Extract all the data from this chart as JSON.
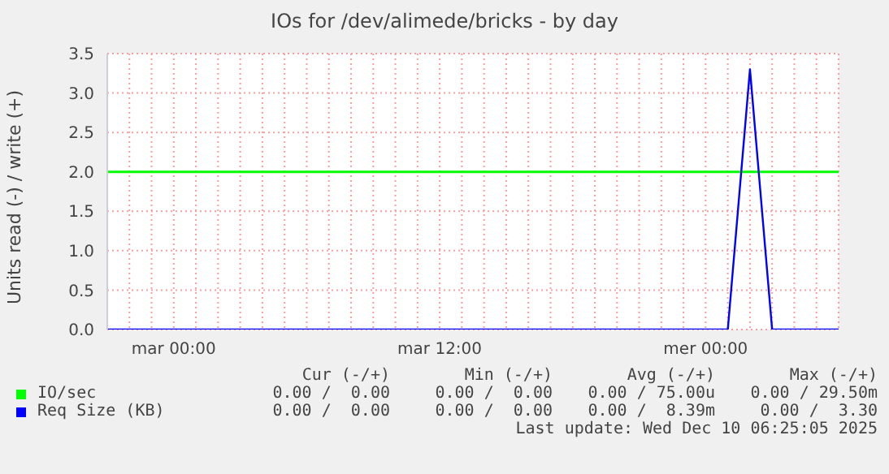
{
  "chart_data": {
    "type": "line",
    "title": "IOs for /dev/alimede/bricks - by day",
    "ylabel": "Units read (-) / write (+)",
    "categories": [
      null,
      null,
      null,
      "mar 00:00",
      null,
      null,
      null,
      null,
      null,
      null,
      null,
      null,
      null,
      null,
      null,
      "mar 12:00",
      null,
      null,
      null,
      null,
      null,
      null,
      null,
      null,
      null,
      null,
      null,
      "mer 00:00",
      null,
      null,
      null,
      null,
      null,
      null
    ],
    "ylim": [
      0,
      3.5
    ],
    "yticks": [
      {
        "value": 0,
        "label": "0.0"
      },
      {
        "value": 0.5,
        "label": "0.5"
      },
      {
        "value": 1,
        "label": "1.0"
      },
      {
        "value": 1.5,
        "label": "1.5"
      },
      {
        "value": 2,
        "label": "2.0"
      },
      {
        "value": 2.5,
        "label": "2.5"
      },
      {
        "value": 3,
        "label": "3.0"
      },
      {
        "value": 3.5,
        "label": "3.5"
      }
    ],
    "grid": true,
    "legend": "bottom",
    "marker": "none",
    "series": [
      {
        "name": "IO/sec",
        "color": "#00ff00",
        "values": [
          null,
          null,
          null,
          null,
          null,
          null,
          null,
          null,
          null,
          null,
          null,
          null,
          null,
          null,
          null,
          null,
          null,
          null,
          null,
          null,
          null,
          null,
          null,
          null,
          null,
          null,
          null,
          null,
          null,
          null,
          null,
          null,
          null,
          null
        ]
      },
      {
        "name": "Req Size (KB)",
        "color": "#0000ff",
        "values": [
          0,
          0,
          0,
          0,
          0,
          0,
          0,
          0,
          0,
          0,
          0,
          0,
          0,
          0,
          0,
          0,
          0,
          0,
          0,
          0,
          0,
          0,
          0,
          0,
          0,
          0,
          0,
          0,
          0,
          3.3,
          0,
          0,
          0,
          0
        ]
      }
    ],
    "ref_lines": [
      {
        "axis": "y",
        "value": 2,
        "color": "#00ff00"
      }
    ],
    "annotations": [
      "Cur (-/+)",
      "Min (-/+)",
      "Avg (-/+)",
      "Max (-/+)",
      "0.00 /  0.00",
      "0.00 /  0.00",
      "0.00 / 75.00u",
      "0.00 / 29.50m",
      "0.00 /  0.00",
      "0.00 /  0.00",
      "0.00 /  8.39m",
      "0.00 /  3.30",
      "Last update: Wed Dec 10 06:25:05 2025"
    ]
  }
}
